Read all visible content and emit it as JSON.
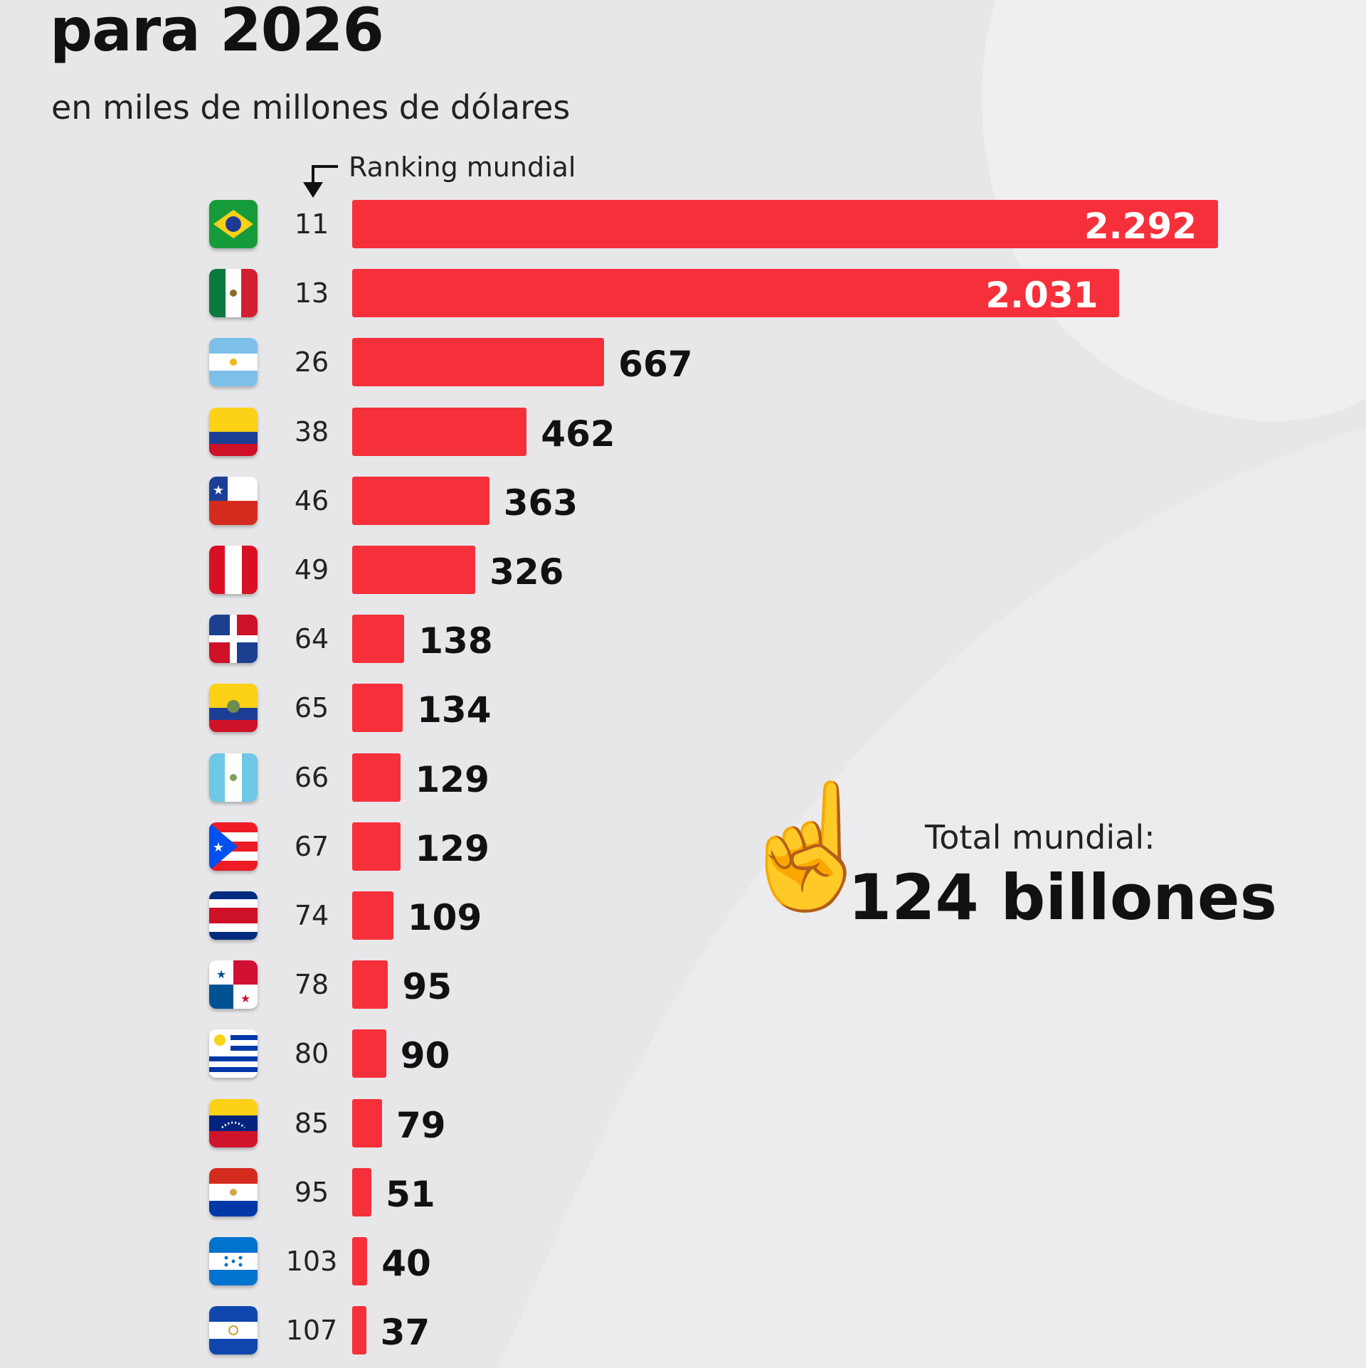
{
  "title": "para 2026",
  "subtitle": "en miles de millones de dólares",
  "ranking_label": "Ranking mundial",
  "total": {
    "label": "Total mundial:",
    "value": "124 billones",
    "icon": "pointing-up-hand-icon",
    "emoji": "☝️"
  },
  "colors": {
    "bar": "#f6303b",
    "background": "#e7e7e9"
  },
  "chart_data": {
    "type": "bar",
    "orientation": "horizontal",
    "title": "para 2026",
    "subtitle": "en miles de millones de dólares",
    "xlim": [
      0,
      2292
    ],
    "grid": false,
    "rows": [
      {
        "flag": "flag-brazil",
        "rank": "11",
        "value": 2292,
        "label": "2.292"
      },
      {
        "flag": "flag-mexico",
        "rank": "13",
        "value": 2031,
        "label": "2.031"
      },
      {
        "flag": "flag-argentina",
        "rank": "26",
        "value": 667,
        "label": "667"
      },
      {
        "flag": "flag-colombia",
        "rank": "38",
        "value": 462,
        "label": "462"
      },
      {
        "flag": "flag-chile",
        "rank": "46",
        "value": 363,
        "label": "363"
      },
      {
        "flag": "flag-peru",
        "rank": "49",
        "value": 326,
        "label": "326"
      },
      {
        "flag": "flag-dominican-republic",
        "rank": "64",
        "value": 138,
        "label": "138"
      },
      {
        "flag": "flag-ecuador",
        "rank": "65",
        "value": 134,
        "label": "134"
      },
      {
        "flag": "flag-guatemala",
        "rank": "66",
        "value": 129,
        "label": "129"
      },
      {
        "flag": "flag-puerto-rico",
        "rank": "67",
        "value": 129,
        "label": "129"
      },
      {
        "flag": "flag-costa-rica",
        "rank": "74",
        "value": 109,
        "label": "109"
      },
      {
        "flag": "flag-panama",
        "rank": "78",
        "value": 95,
        "label": "95"
      },
      {
        "flag": "flag-uruguay",
        "rank": "80",
        "value": 90,
        "label": "90"
      },
      {
        "flag": "flag-venezuela",
        "rank": "85",
        "value": 79,
        "label": "79"
      },
      {
        "flag": "flag-paraguay",
        "rank": "95",
        "value": 51,
        "label": "51"
      },
      {
        "flag": "flag-honduras",
        "rank": "103",
        "value": 40,
        "label": "40"
      },
      {
        "flag": "flag-el-salvador",
        "rank": "107",
        "value": 37,
        "label": "37"
      }
    ]
  }
}
